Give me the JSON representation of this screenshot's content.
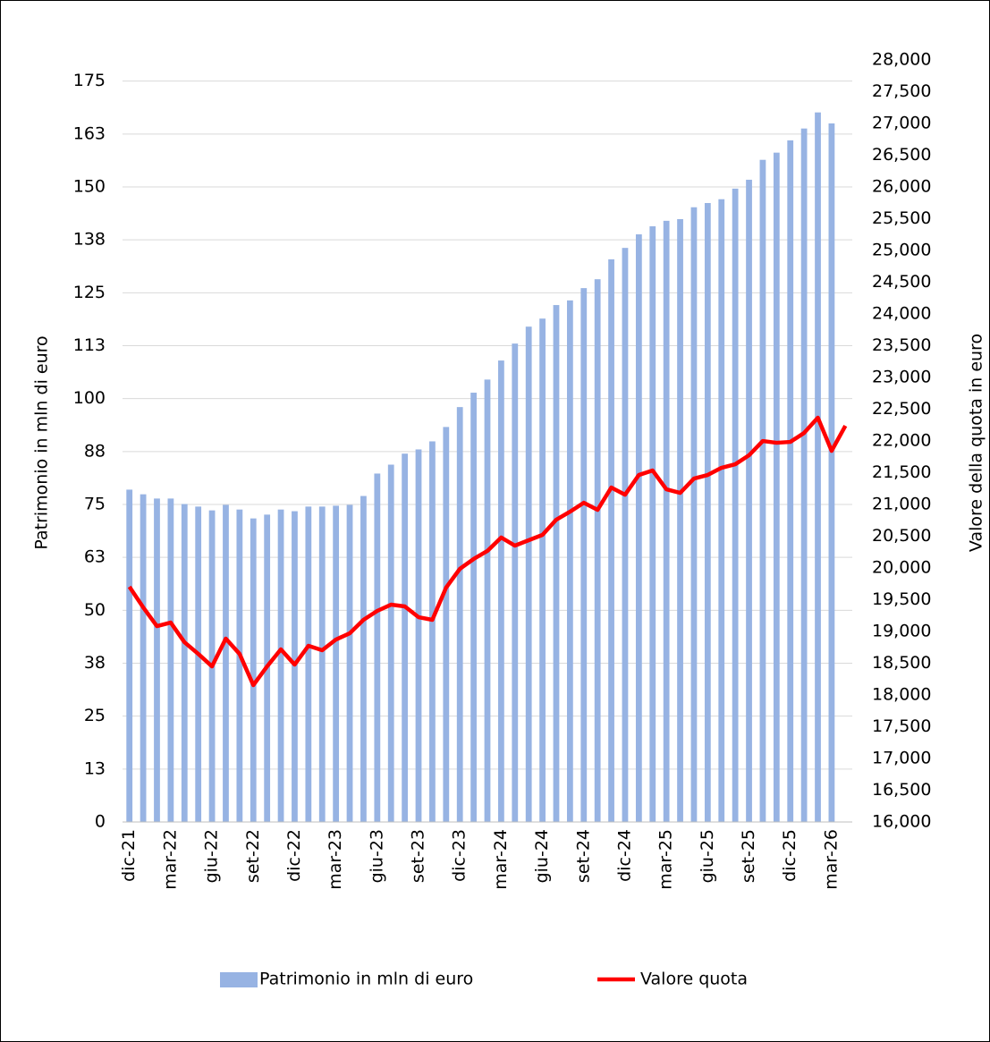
{
  "chart_data": {
    "type": "combo",
    "y_label": "Patrimonio in mln di euro",
    "y2_label": "Valore della quota in euro",
    "categories": [
      "dic-21",
      null,
      null,
      "mar-22",
      null,
      null,
      "giu-22",
      null,
      null,
      "set-22",
      null,
      null,
      "dic-22",
      null,
      null,
      "mar-23",
      null,
      null,
      "giu-23",
      null,
      null,
      "set-23",
      null,
      null,
      "dic-23",
      null,
      null,
      "mar-24",
      null,
      null,
      "giu-24",
      null,
      null,
      "set-24",
      null,
      null,
      "dic-24",
      null,
      null,
      "mar-25",
      null,
      null,
      "giu-25",
      null,
      null,
      "set-25",
      null,
      null,
      "dic-25",
      null,
      null,
      "mar-26",
      null
    ],
    "series": [
      {
        "name": "Patrimonio in mln di euro",
        "type": "bar",
        "color": "#97b3e3",
        "values": [
          78.5,
          77.4,
          76.4,
          76.4,
          75.1,
          74.5,
          73.6,
          74.9,
          73.8,
          71.7,
          72.6,
          73.8,
          73.4,
          74.5,
          74.5,
          74.7,
          74.9,
          77.0,
          82.3,
          84.4,
          87.0,
          88.0,
          89.9,
          93.3,
          98.0,
          101.4,
          104.5,
          109.0,
          113.0,
          117.0,
          118.9,
          122.1,
          123.2,
          126.1,
          128.2,
          132.9,
          135.6,
          138.8,
          140.7,
          142.0,
          142.4,
          145.2,
          146.2,
          147.1,
          149.6,
          151.7,
          156.4,
          158.1,
          161.0,
          163.8,
          167.6,
          165.0,
          null
        ]
      },
      {
        "name": "Valore quota",
        "type": "line",
        "axis": "y2",
        "color": "#ff0000",
        "values": [
          19704,
          19380,
          19084,
          19140,
          18830,
          18647,
          18450,
          18887,
          18647,
          18155,
          18450,
          18718,
          18478,
          18774,
          18704,
          18873,
          18971,
          19183,
          19324,
          19422,
          19394,
          19225,
          19183,
          19690,
          19986,
          20141,
          20268,
          20479,
          20352,
          20437,
          20521,
          20760,
          20886,
          21027,
          20915,
          21266,
          21154,
          21464,
          21535,
          21238,
          21182,
          21407,
          21464,
          21577,
          21633,
          21774,
          21999,
          21971,
          21985,
          22126,
          22366,
          21844,
          22238
        ]
      }
    ],
    "ylim": [
      0,
      180
    ],
    "yticks": [
      0,
      {
        "value": 12.5,
        "label": "13"
      },
      25,
      {
        "value": 37.5,
        "label": "38"
      },
      50,
      {
        "value": 62.5,
        "label": "63"
      },
      75,
      {
        "value": 87.5,
        "label": "88"
      },
      100,
      {
        "value": 112.5,
        "label": "113"
      },
      125,
      {
        "value": 137.5,
        "label": "138"
      },
      150,
      {
        "value": 162.5,
        "label": "163"
      },
      175
    ],
    "y2lim": [
      16000,
      28000
    ],
    "y2ticks": [
      {
        "value": 16000,
        "label": "16,000"
      },
      {
        "value": 16500,
        "label": "16,500"
      },
      {
        "value": 17000,
        "label": "17,000"
      },
      {
        "value": 17500,
        "label": "17,500"
      },
      {
        "value": 18000,
        "label": "18,000"
      },
      {
        "value": 18500,
        "label": "18,500"
      },
      {
        "value": 19000,
        "label": "19,000"
      },
      {
        "value": 19500,
        "label": "19,500"
      },
      {
        "value": 20000,
        "label": "20,000"
      },
      {
        "value": 20500,
        "label": "20,500"
      },
      {
        "value": 21000,
        "label": "21,000"
      },
      {
        "value": 21500,
        "label": "21,500"
      },
      {
        "value": 22000,
        "label": "22,000"
      },
      {
        "value": 22500,
        "label": "22,500"
      },
      {
        "value": 23000,
        "label": "23,000"
      },
      {
        "value": 23500,
        "label": "23,500"
      },
      {
        "value": 24000,
        "label": "24,000"
      },
      {
        "value": 24500,
        "label": "24,500"
      },
      {
        "value": 25000,
        "label": "25,000"
      },
      {
        "value": 25500,
        "label": "25,500"
      },
      {
        "value": 26000,
        "label": "26,000"
      },
      {
        "value": 26500,
        "label": "26,500"
      },
      {
        "value": 27000,
        "label": "27,000"
      },
      {
        "value": 27500,
        "label": "27,500"
      },
      {
        "value": 28000,
        "label": "28,000"
      }
    ],
    "grid": true,
    "legend": "bottom"
  }
}
